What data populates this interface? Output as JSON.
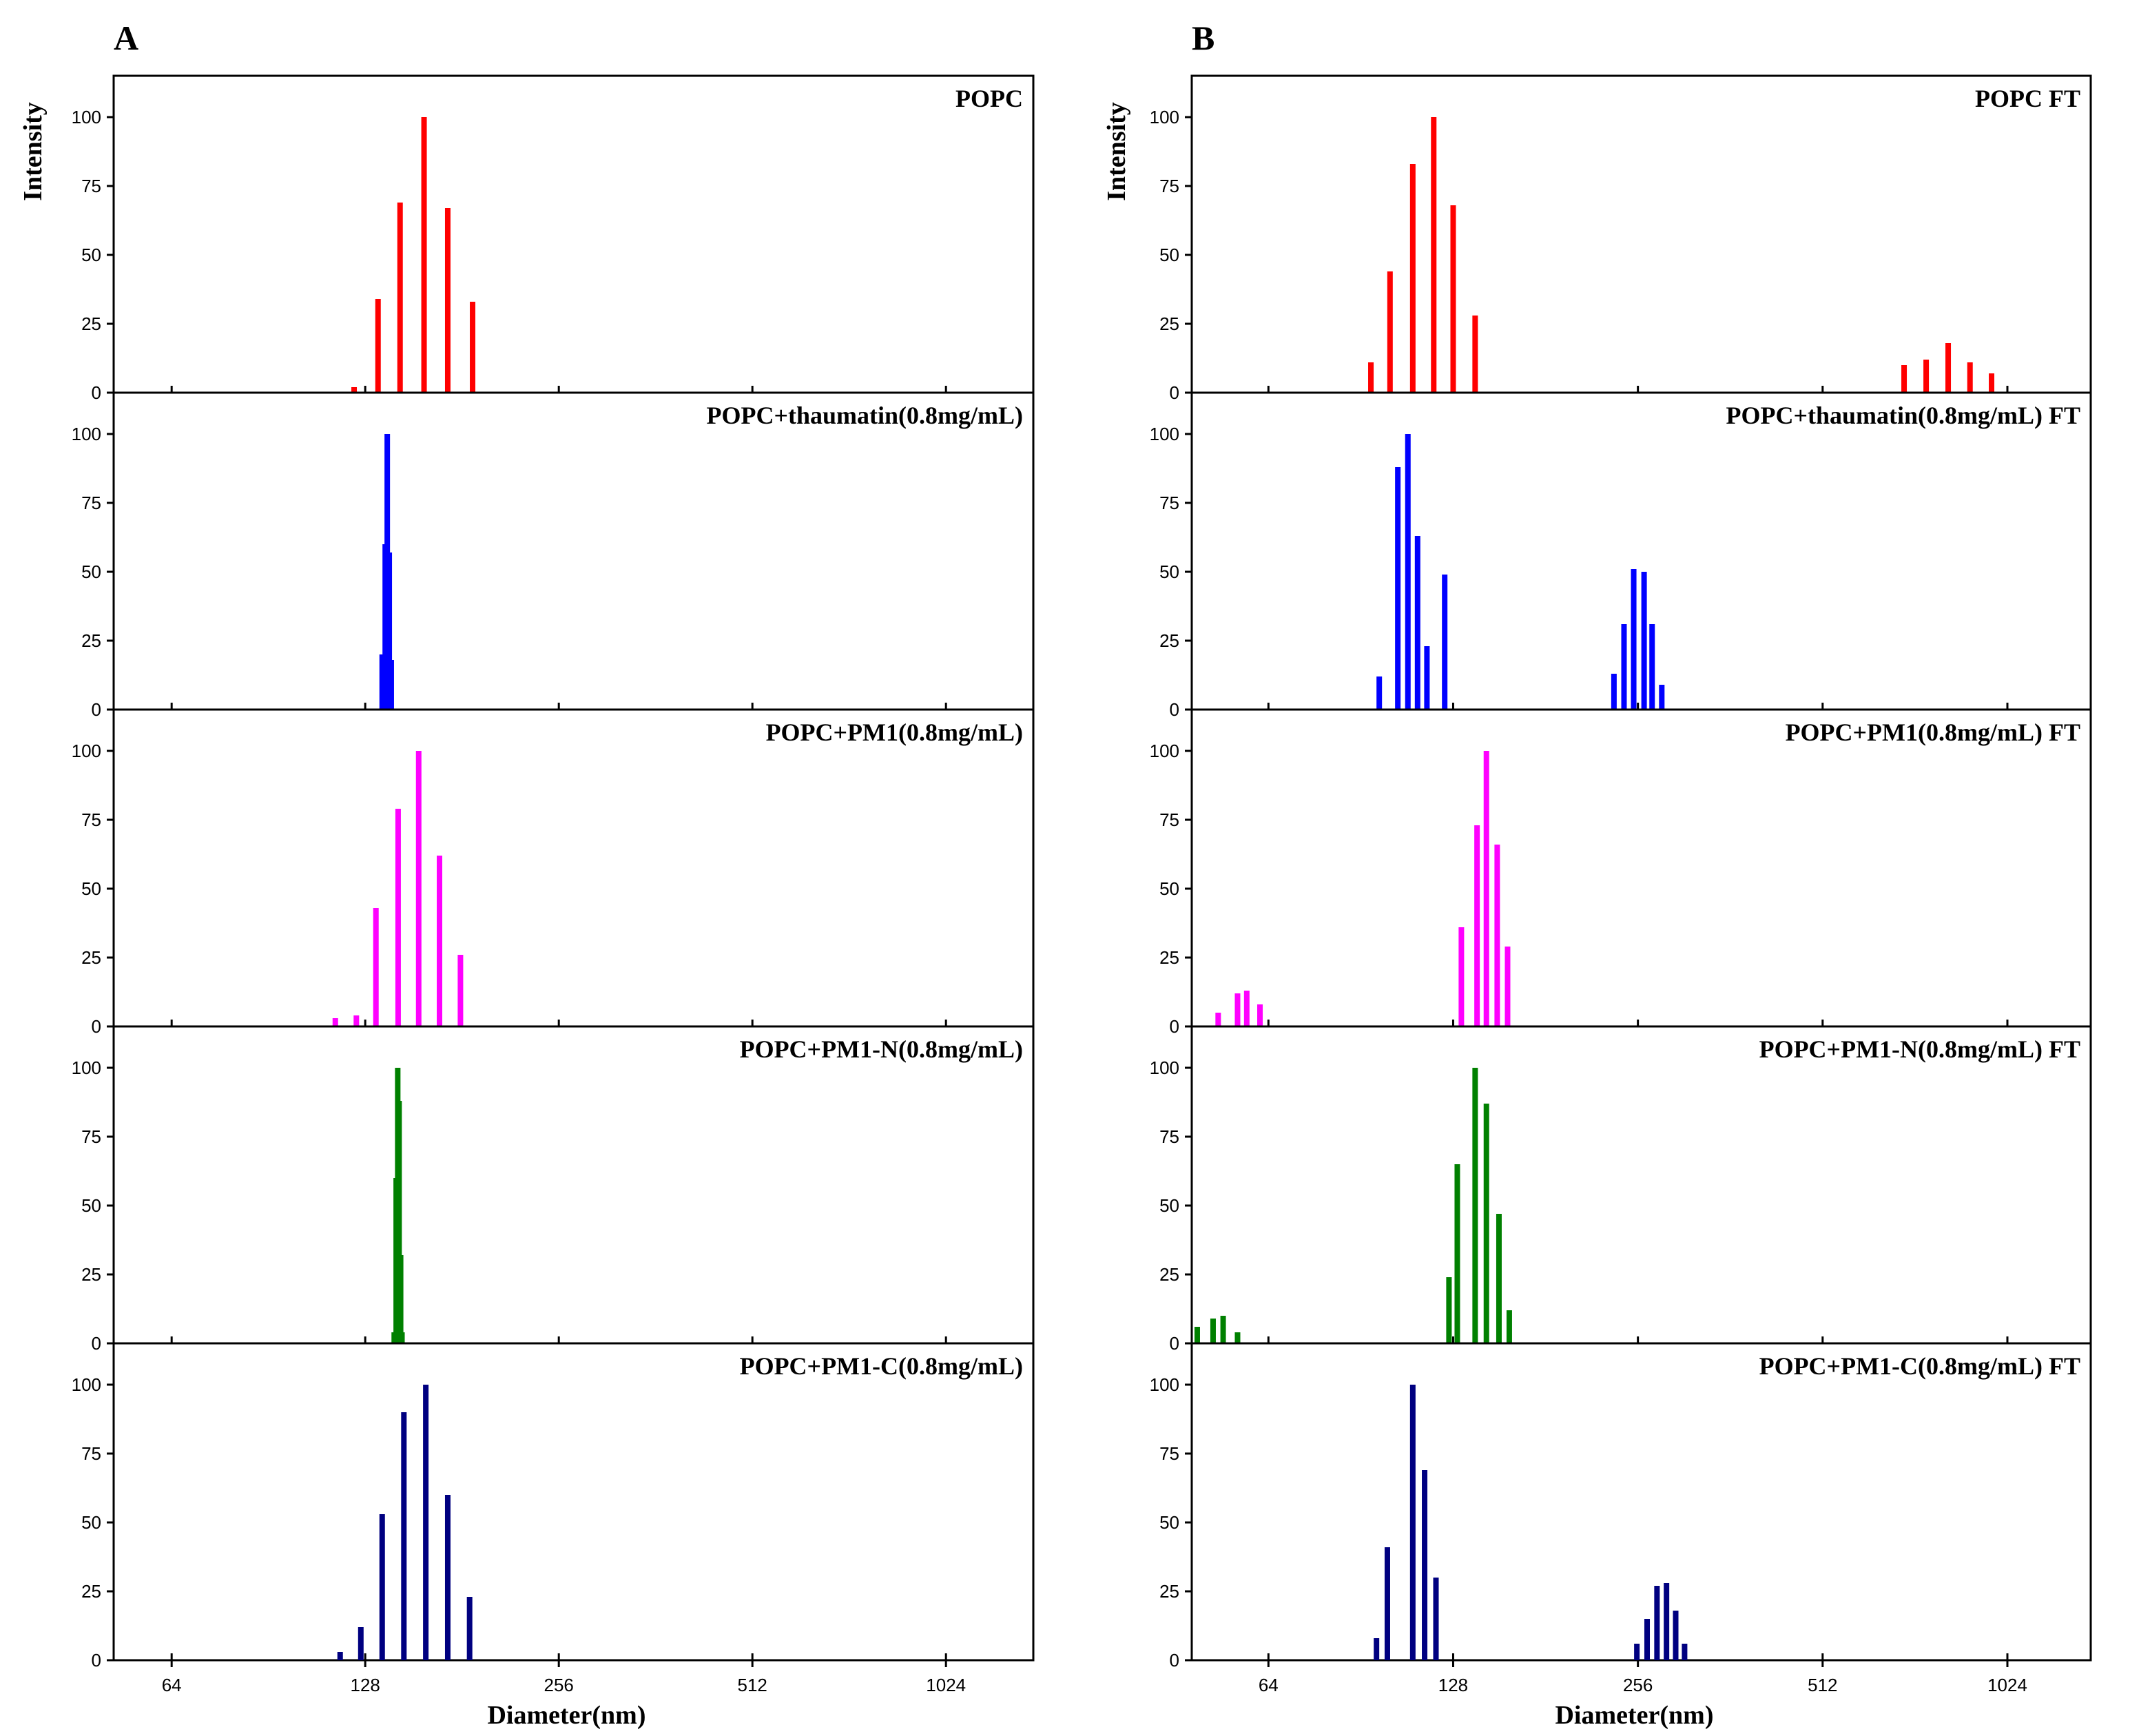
{
  "chart_data": [
    {
      "panel": "A",
      "type": "bar",
      "xlabel": "Diameter(nm)",
      "ylabel": "Intensity",
      "xscale": "log2",
      "xlim": [
        52,
        1400
      ],
      "ylim": [
        0,
        115
      ],
      "xticks": [
        64,
        128,
        256,
        512,
        1024
      ],
      "xtick_labels": [
        "64",
        "128",
        "256",
        "512",
        "1024"
      ],
      "yticks": [
        0,
        25,
        50,
        75,
        100
      ],
      "ytick_labels": [
        "0",
        "25",
        "50",
        "75",
        "100"
      ],
      "series": [
        {
          "name": "POPC",
          "color": "#ff0000",
          "x": [
            123,
            134,
            145,
            158,
            172,
            188
          ],
          "y": [
            2,
            34,
            69,
            100,
            67,
            33
          ]
        },
        {
          "name": "POPC+thaumatin(0.8mg/mL)",
          "color": "#0000ff",
          "x": [
            136,
            137.5,
            138.5,
            139.5,
            140.5
          ],
          "y": [
            20,
            60,
            100,
            57,
            18
          ]
        },
        {
          "name": "POPC+PM1(0.8mg/mL)",
          "color": "#ff00ff",
          "x": [
            115,
            124,
            133,
            144,
            155,
            167,
            180
          ],
          "y": [
            3,
            4,
            43,
            79,
            100,
            62,
            26
          ]
        },
        {
          "name": "POPC+PM1-N(0.8mg/mL)",
          "color": "#008000",
          "x": [
            142,
            143,
            143.8,
            144.5,
            145.3,
            146
          ],
          "y": [
            4,
            60,
            100,
            88,
            32,
            4
          ]
        },
        {
          "name": "POPC+PM1-C(0.8mg/mL)",
          "color": "#000080",
          "x": [
            117,
            126,
            136,
            147,
            159,
            172,
            186
          ],
          "y": [
            3,
            12,
            53,
            90,
            100,
            60,
            23
          ]
        }
      ]
    },
    {
      "panel": "B",
      "type": "bar",
      "xlabel": "Diameter(nm)",
      "ylabel": "Intensity",
      "xscale": "log2",
      "xlim": [
        48,
        1400
      ],
      "ylim": [
        0,
        115
      ],
      "xticks": [
        64,
        128,
        256,
        512,
        1024
      ],
      "xtick_labels": [
        "64",
        "128",
        "256",
        "512",
        "1024"
      ],
      "yticks": [
        0,
        25,
        50,
        75,
        100
      ],
      "ytick_labels": [
        "0",
        "25",
        "50",
        "75",
        "100"
      ],
      "series": [
        {
          "name": "POPC FT",
          "color": "#ff0000",
          "x": [
            94,
            101,
            110,
            119,
            128,
            139,
            152,
            695,
            755,
            820,
            890,
            965
          ],
          "y": [
            11,
            44,
            83,
            100,
            68,
            28,
            0,
            10,
            12,
            18,
            11,
            7
          ]
        },
        {
          "name": "POPC+thaumatin(0.8mg/mL) FT",
          "color": "#0000ff",
          "x": [
            97,
            104,
            108,
            112,
            116,
            124,
            234,
            243,
            252,
            262,
            270,
            280
          ],
          "y": [
            12,
            88,
            100,
            63,
            23,
            49,
            13,
            31,
            51,
            50,
            31,
            9
          ]
        },
        {
          "name": "POPC+PM1(0.8mg/mL) FT",
          "color": "#ff00ff",
          "x": [
            53,
            57,
            59,
            62,
            132,
            140,
            145,
            151,
            157
          ],
          "y": [
            5,
            12,
            13,
            8,
            36,
            73,
            100,
            66,
            29
          ]
        },
        {
          "name": "POPC+PM1-N(0.8mg/mL) FT",
          "color": "#008000",
          "x": [
            49,
            52,
            54,
            57,
            126,
            130,
            139,
            145,
            152,
            158,
            165
          ],
          "y": [
            6,
            9,
            10,
            4,
            24,
            65,
            100,
            87,
            47,
            12,
            0
          ]
        },
        {
          "name": "POPC+PM1-C(0.8mg/mL) FT",
          "color": "#000080",
          "x": [
            96,
            100,
            110,
            115,
            120,
            255,
            265,
            275,
            285,
            295,
            305
          ],
          "y": [
            8,
            41,
            100,
            69,
            30,
            6,
            15,
            27,
            28,
            18,
            6
          ]
        }
      ]
    }
  ]
}
